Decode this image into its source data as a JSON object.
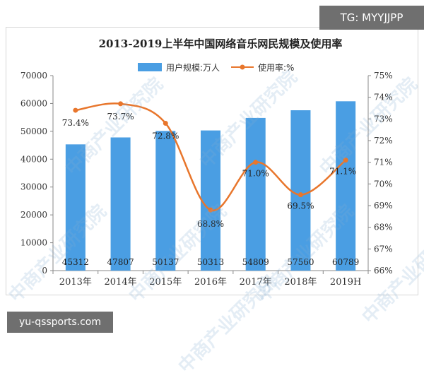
{
  "overlay": {
    "top_tag": "TG: MYYJJPP",
    "bottom_tag": "yu-qssports.com",
    "watermark": "中商产业研究院"
  },
  "colors": {
    "bar": "#4a9ee3",
    "line": "#e8762c",
    "grid": "#dddddd",
    "text": "#333333"
  },
  "chart_data": {
    "type": "bar",
    "title": "2013-2019上半年中国网络音乐网民规模及使用率",
    "categories": [
      "2013年",
      "2014年",
      "2015年",
      "2016年",
      "2017年",
      "2018年",
      "2019H"
    ],
    "series": [
      {
        "name": "用户规模:万人",
        "type": "bar",
        "axis": "left",
        "values": [
          45312,
          47807,
          50137,
          50313,
          54809,
          57560,
          60789
        ],
        "labels": [
          "45312",
          "47807",
          "50137",
          "50313",
          "54809",
          "57560",
          "60789"
        ]
      },
      {
        "name": "使用率:%",
        "type": "line",
        "axis": "right",
        "values": [
          73.4,
          73.7,
          72.8,
          68.8,
          71.0,
          69.5,
          71.1
        ],
        "labels": [
          "73.4%",
          "73.7%",
          "72.8%",
          "68.8%",
          "71.0%",
          "69.5%",
          "71.1%"
        ]
      }
    ],
    "y_left": {
      "min": 0,
      "max": 70000,
      "ticks": [
        "0",
        "10000",
        "20000",
        "30000",
        "40000",
        "50000",
        "60000",
        "70000"
      ]
    },
    "y_right": {
      "min": 66,
      "max": 75,
      "ticks": [
        "66%",
        "67%",
        "68%",
        "69%",
        "70%",
        "71%",
        "72%",
        "73%",
        "74%",
        "75%"
      ]
    },
    "legend_position": "top-center",
    "grid": false
  }
}
